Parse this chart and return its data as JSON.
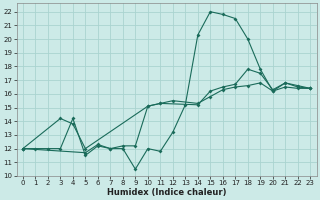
{
  "xlabel": "Humidex (Indice chaleur)",
  "bg_color": "#cceae7",
  "grid_color": "#aad4d0",
  "line_color": "#1a6b5a",
  "xlim": [
    -0.5,
    23.5
  ],
  "ylim": [
    10,
    22.6
  ],
  "yticks": [
    10,
    11,
    12,
    13,
    14,
    15,
    16,
    17,
    18,
    19,
    20,
    21,
    22
  ],
  "xticks": [
    0,
    1,
    2,
    3,
    4,
    5,
    6,
    7,
    8,
    9,
    10,
    11,
    12,
    13,
    14,
    15,
    16,
    17,
    18,
    19,
    20,
    21,
    22,
    23
  ],
  "series1_x": [
    0,
    1,
    2,
    3,
    4,
    5,
    6,
    7,
    8,
    9,
    10,
    11,
    12,
    13,
    14,
    15,
    16,
    17,
    18,
    19,
    20,
    21,
    22,
    23
  ],
  "series1_y": [
    12,
    12,
    12,
    12,
    14.2,
    11.5,
    12.2,
    12,
    12,
    10.5,
    12,
    11.8,
    13.2,
    15.2,
    20.3,
    22.0,
    21.8,
    21.5,
    20.0,
    17.8,
    16.2,
    16.8,
    16.5,
    16.4
  ],
  "series2_x": [
    0,
    3,
    4,
    5,
    10,
    11,
    14,
    15,
    16,
    17,
    18,
    19,
    20,
    21,
    22,
    23
  ],
  "series2_y": [
    12,
    14.2,
    13.8,
    12.0,
    15.1,
    15.3,
    15.2,
    16.2,
    16.5,
    16.7,
    17.8,
    17.5,
    16.3,
    16.8,
    16.6,
    16.4
  ],
  "series3_x": [
    0,
    5,
    6,
    7,
    8,
    9,
    10,
    11,
    12,
    14,
    15,
    16,
    17,
    18,
    19,
    20,
    21,
    22,
    23
  ],
  "series3_y": [
    12,
    11.7,
    12.3,
    12.0,
    12.2,
    12.2,
    15.1,
    15.3,
    15.5,
    15.3,
    15.8,
    16.3,
    16.5,
    16.6,
    16.8,
    16.2,
    16.5,
    16.4,
    16.4
  ]
}
